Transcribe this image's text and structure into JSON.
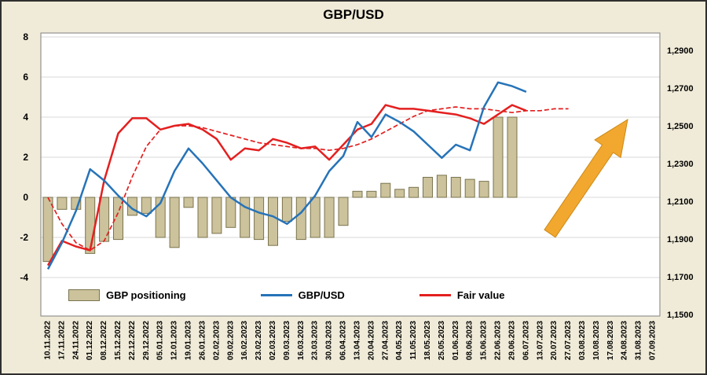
{
  "title": "GBP/USD",
  "legend": [
    {
      "label": "GBP positioning",
      "type": "bar"
    },
    {
      "label": "GBP/USD",
      "type": "line"
    },
    {
      "label": "Fair value",
      "type": "line"
    }
  ],
  "colors": {
    "background": "#f0ebd8",
    "plot_background": "#ffffff",
    "bar_fill": "#ccc29b",
    "bar_stroke": "#7a744f",
    "gbpusd_line": "#2673b8",
    "fair_value_line": "#e41f1f",
    "trend_dashed_line": "#e41f1f",
    "arrow": "#f2a72e",
    "arrow_stroke": "#cc8a16",
    "gridline": "#d9d9d9",
    "plot_border": "#7f7f7f",
    "text": "#000000"
  },
  "chart_data": {
    "type": "bar",
    "subtype": "combo bar + line, dual axis",
    "title": "GBP/USD",
    "legend_position": "bottom-inside",
    "grid": true,
    "categories": [
      "10.11.2022",
      "17.11.2022",
      "24.11.2022",
      "01.12.2022",
      "08.12.2022",
      "15.12.2022",
      "22.12.2022",
      "29.12.2022",
      "05.01.2023",
      "12.01.2023",
      "19.01.2023",
      "26.01.2023",
      "02.02.2023",
      "09.02.2023",
      "16.02.2023",
      "23.02.2023",
      "02.03.2023",
      "09.03.2023",
      "16.03.2023",
      "23.03.2023",
      "30.03.2023",
      "06.04.2023",
      "13.04.2023",
      "20.04.2023",
      "27.04.2023",
      "04.05.2023",
      "11.05.2023",
      "18.05.2023",
      "25.05.2023",
      "01.06.2023",
      "08.06.2023",
      "15.06.2023",
      "22.06.2023",
      "29.06.2023",
      "06.07.2023",
      "13.07.2023",
      "20.07.2023",
      "27.07.2023",
      "03.08.2023",
      "10.08.2023",
      "17.08.2023",
      "24.08.2023",
      "31.08.2023",
      "07.09.2023"
    ],
    "left_axis": {
      "applies_to": "GBP positioning",
      "ticks": [
        8,
        6,
        4,
        2,
        0,
        -2,
        -4
      ],
      "range": [
        -4,
        8
      ]
    },
    "right_axis": {
      "applies_to": "GBP/USD and Fair value",
      "ticks": [
        1.29,
        1.27,
        1.25,
        1.23,
        1.21,
        1.19,
        1.17,
        1.15
      ],
      "tick_labels": [
        "1,2900",
        "1,2700",
        "1,2500",
        "1,2300",
        "1,2100",
        "1,1900",
        "1,1700",
        "1,1500"
      ],
      "range": [
        1.15,
        1.29
      ]
    },
    "series": [
      {
        "name": "GBP positioning",
        "type": "bar",
        "axis": "left",
        "in_legend": true,
        "values": [
          -3.2,
          -0.6,
          -0.6,
          -2.8,
          -2.2,
          -2.1,
          -0.9,
          -0.8,
          -2.0,
          -2.5,
          -0.5,
          -2.0,
          -1.8,
          -1.5,
          -2.0,
          -2.1,
          -2.4,
          -1.2,
          -2.1,
          -2.0,
          -2.0,
          -1.4,
          0.3,
          0.3,
          0.7,
          0.4,
          0.5,
          1.0,
          1.1,
          1.0,
          0.9,
          0.8,
          4.0,
          4.0,
          null,
          null,
          null,
          null,
          null,
          null,
          null,
          null,
          null,
          null
        ]
      },
      {
        "name": "GBP/USD",
        "type": "line",
        "axis": "right",
        "in_legend": true,
        "values": [
          1.174,
          1.188,
          1.205,
          1.227,
          1.221,
          1.213,
          1.206,
          1.202,
          1.209,
          1.226,
          1.238,
          1.23,
          1.221,
          1.212,
          1.207,
          1.204,
          1.202,
          1.198,
          1.204,
          1.213,
          1.226,
          1.234,
          1.252,
          1.244,
          1.256,
          1.252,
          1.247,
          1.24,
          1.233,
          1.24,
          1.237,
          1.26,
          1.273,
          1.271,
          1.268,
          null,
          null,
          null,
          null,
          null,
          null,
          null,
          null,
          null
        ]
      },
      {
        "name": "Fair value",
        "type": "line",
        "axis": "right",
        "in_legend": true,
        "values": [
          1.176,
          1.189,
          1.186,
          1.184,
          1.221,
          1.246,
          1.254,
          1.254,
          1.248,
          1.25,
          1.251,
          1.248,
          1.243,
          1.232,
          1.238,
          1.237,
          1.243,
          1.241,
          1.238,
          1.239,
          1.232,
          1.24,
          1.248,
          1.251,
          1.261,
          1.259,
          1.259,
          1.258,
          1.257,
          1.256,
          1.254,
          1.251,
          1.256,
          1.261,
          1.258,
          null,
          null,
          null,
          null,
          null,
          null,
          null,
          null,
          null
        ]
      },
      {
        "name": "Fair value trend (dashed)",
        "type": "line",
        "style": "dashed",
        "axis": "right",
        "in_legend": false,
        "values": [
          1.212,
          1.198,
          1.188,
          1.184,
          1.189,
          1.204,
          1.223,
          1.239,
          1.248,
          1.25,
          1.25,
          1.249,
          1.247,
          1.245,
          1.243,
          1.241,
          1.24,
          1.239,
          1.238,
          1.238,
          1.237,
          1.238,
          1.24,
          1.243,
          1.247,
          1.251,
          1.255,
          1.258,
          1.259,
          1.26,
          1.259,
          1.259,
          1.258,
          1.257,
          1.258,
          1.258,
          1.259,
          1.259,
          null,
          null,
          null,
          null,
          null,
          null
        ]
      }
    ],
    "annotations": [
      {
        "type": "arrow",
        "direction": "up-right",
        "color": "orange",
        "meaning": "bullish trend expectation"
      }
    ]
  }
}
